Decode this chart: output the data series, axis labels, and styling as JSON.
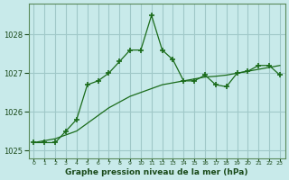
{
  "xlabel": "Graphe pression niveau de la mer (hPa)",
  "bg_color": "#c8eaea",
  "grid_color": "#a0c8c8",
  "line_color": "#1a6b1a",
  "tick_color": "#1a4a1a",
  "x_values": [
    0,
    1,
    2,
    3,
    4,
    5,
    6,
    7,
    8,
    9,
    10,
    11,
    12,
    13,
    14,
    15,
    16,
    17,
    18,
    19,
    20,
    21,
    22,
    23
  ],
  "y_main": [
    1025.2,
    1025.2,
    1025.2,
    1025.5,
    1025.8,
    1026.7,
    1026.8,
    1027.0,
    1027.3,
    1027.6,
    1027.6,
    1028.5,
    1027.6,
    1027.35,
    1026.8,
    1026.8,
    1026.95,
    1026.7,
    1026.65,
    1027.0,
    1027.05,
    1027.2,
    1027.2,
    1026.95
  ],
  "y_trend": [
    1025.2,
    1025.25,
    1025.3,
    1025.4,
    1025.5,
    1025.7,
    1025.9,
    1026.1,
    1026.25,
    1026.4,
    1026.5,
    1026.6,
    1026.7,
    1026.75,
    1026.8,
    1026.85,
    1026.9,
    1026.92,
    1026.95,
    1027.0,
    1027.05,
    1027.1,
    1027.15,
    1027.2
  ],
  "ylim": [
    1024.8,
    1028.8
  ],
  "yticks": [
    1025,
    1026,
    1027,
    1028
  ],
  "xlim": [
    -0.5,
    23.5
  ]
}
